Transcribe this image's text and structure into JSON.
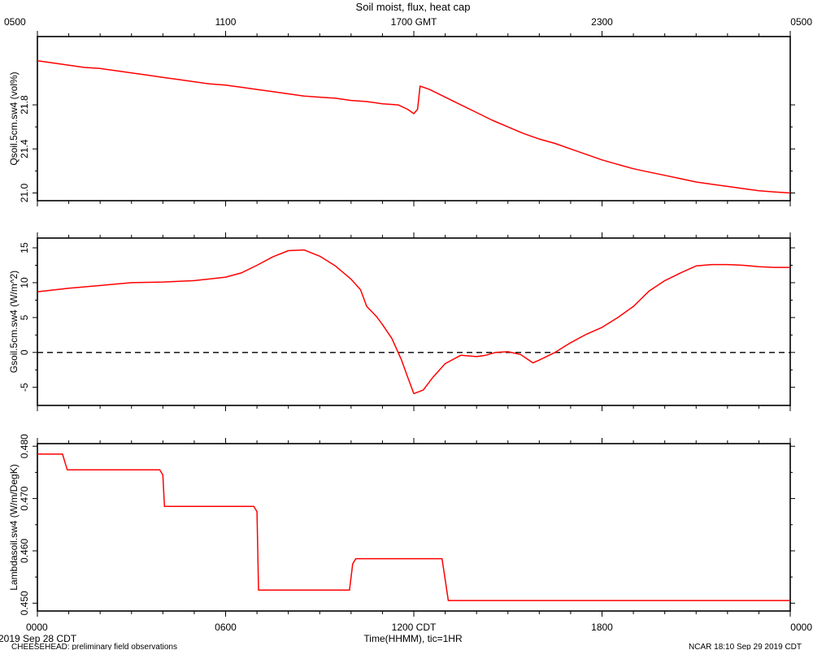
{
  "title": "Soil moist, flux, heat cap",
  "top_axis_labels": [
    "0500",
    "1100",
    "1700 GMT",
    "2300",
    "0500"
  ],
  "bottom_axis_labels": [
    "0000",
    "0600",
    "1200 CDT",
    "1800",
    "0000"
  ],
  "xlabel": "Time(HHMM), tic=1HR",
  "date_label": "2019 Sep 28 CDT",
  "footer_left": "CHEESEHEAD: preliminary field observations",
  "footer_right": "NCAR 18:10 Sep 29 2019 CDT",
  "colors": {
    "series": "#ff0000",
    "axes": "#000000",
    "zero_line": "#000000"
  },
  "chart_data": [
    {
      "type": "line",
      "ylabel": "Qsoil.5cm.sw4 (vol%)",
      "x_unit": "hours since 0000 CDT",
      "xlim": [
        0,
        24
      ],
      "ylim": [
        20.93,
        22.42
      ],
      "yticks": [
        21.0,
        21.4,
        21.8
      ],
      "ytick_labels": [
        "21.0",
        "21.4",
        "21.8"
      ],
      "grid": false,
      "series": [
        {
          "x": [
            0,
            0.5,
            1,
            1.5,
            2,
            2.5,
            3,
            3.5,
            4,
            4.5,
            5,
            5.5,
            6,
            6.5,
            7,
            7.5,
            8,
            8.5,
            9,
            9.5,
            10,
            10.5,
            11,
            11.5,
            11.8,
            12,
            12.12,
            12.2,
            12.5,
            13,
            13.5,
            14,
            14.5,
            15,
            15.5,
            15.8,
            16,
            16.5,
            17,
            17.5,
            18,
            18.5,
            19,
            19.5,
            20,
            20.5,
            21,
            21.5,
            22,
            22.5,
            23,
            23.5,
            24
          ],
          "y": [
            22.2,
            22.18,
            22.16,
            22.14,
            22.13,
            22.11,
            22.09,
            22.07,
            22.05,
            22.03,
            22.01,
            21.99,
            21.98,
            21.96,
            21.94,
            21.92,
            21.9,
            21.88,
            21.87,
            21.86,
            21.84,
            21.83,
            21.81,
            21.8,
            21.76,
            21.72,
            21.76,
            21.97,
            21.94,
            21.87,
            21.8,
            21.73,
            21.66,
            21.6,
            21.54,
            21.51,
            21.49,
            21.45,
            21.4,
            21.35,
            21.3,
            21.26,
            21.22,
            21.19,
            21.16,
            21.13,
            21.1,
            21.08,
            21.06,
            21.04,
            21.02,
            21.01,
            21.0
          ]
        }
      ]
    },
    {
      "type": "line",
      "ylabel": "Gsoil.5cm.sw4 (W/m^2)",
      "x_unit": "hours since 0000 CDT",
      "xlim": [
        0,
        24
      ],
      "ylim": [
        -7.6,
        16.4
      ],
      "yticks": [
        -5,
        0,
        5,
        10,
        15
      ],
      "ytick_labels": [
        "-5",
        "0",
        "5",
        "10",
        "15"
      ],
      "zero_line": true,
      "grid": false,
      "series": [
        {
          "x": [
            0,
            1,
            2,
            3,
            4,
            5,
            6,
            6.5,
            7,
            7.5,
            8,
            8.5,
            9,
            9.5,
            10,
            10.3,
            10.5,
            10.8,
            11,
            11.3,
            11.6,
            11.8,
            12,
            12.3,
            12.6,
            13,
            13.5,
            14,
            14.3,
            14.6,
            15,
            15.4,
            15.8,
            16,
            16.5,
            17,
            17.5,
            18,
            18.5,
            19,
            19.5,
            20,
            20.5,
            21,
            21.5,
            22,
            22.5,
            23,
            23.5,
            24
          ],
          "y": [
            8.7,
            9.2,
            9.6,
            10.0,
            10.1,
            10.3,
            10.8,
            11.4,
            12.5,
            13.7,
            14.6,
            14.7,
            13.8,
            12.4,
            10.5,
            9.0,
            6.6,
            5.2,
            4.0,
            2.0,
            -1.0,
            -3.5,
            -5.9,
            -5.4,
            -3.6,
            -1.6,
            -0.4,
            -0.6,
            -0.4,
            0.0,
            0.1,
            -0.3,
            -1.5,
            -1.1,
            0.0,
            1.4,
            2.6,
            3.6,
            5.0,
            6.6,
            8.8,
            10.3,
            11.4,
            12.4,
            12.6,
            12.6,
            12.5,
            12.3,
            12.2,
            12.2
          ]
        }
      ]
    },
    {
      "type": "line",
      "ylabel": "Lambdasoil.sw4 (W/m/DegK)",
      "x_unit": "hours since 0000 CDT",
      "xlim": [
        0,
        24
      ],
      "ylim": [
        0.4485,
        0.4805
      ],
      "yticks": [
        0.45,
        0.46,
        0.47,
        0.48
      ],
      "ytick_labels": [
        "0.450",
        "0.460",
        "0.470",
        "0.480"
      ],
      "grid": false,
      "series": [
        {
          "x": [
            0,
            0.8,
            0.95,
            3.9,
            4.0,
            4.05,
            6.9,
            7.0,
            7.05,
            9.95,
            10.05,
            10.15,
            12.9,
            13.0,
            13.1,
            24
          ],
          "y": [
            0.4785,
            0.4785,
            0.4755,
            0.4755,
            0.4745,
            0.4685,
            0.4685,
            0.4675,
            0.4525,
            0.4525,
            0.4575,
            0.4585,
            0.4585,
            0.4545,
            0.4505,
            0.4505
          ]
        }
      ]
    }
  ]
}
